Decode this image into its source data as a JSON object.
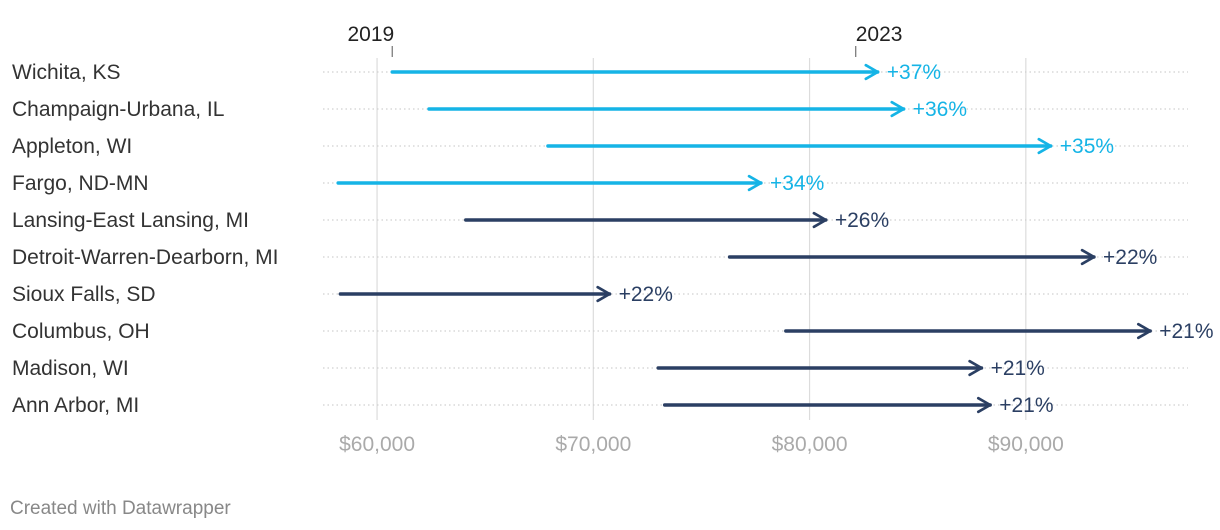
{
  "chart_data": {
    "type": "arrow",
    "title": "",
    "start_label": "2019",
    "end_label": "2023",
    "xlim": [
      57500,
      97500
    ],
    "x_ticks": [
      {
        "value": 60000,
        "label": "$60,000"
      },
      {
        "value": 70000,
        "label": "$70,000"
      },
      {
        "value": 80000,
        "label": "$80,000"
      },
      {
        "value": 90000,
        "label": "$90,000"
      }
    ],
    "rows": [
      {
        "name": "Wichita, KS",
        "start": 60700,
        "end": 83200,
        "change": "+37%",
        "group": "top"
      },
      {
        "name": "Champaign-Urbana, IL",
        "start": 62400,
        "end": 84400,
        "change": "+36%",
        "group": "top"
      },
      {
        "name": "Appleton, WI",
        "start": 67900,
        "end": 91200,
        "change": "+35%",
        "group": "top"
      },
      {
        "name": "Fargo, ND-MN",
        "start": 58200,
        "end": 77800,
        "change": "+34%",
        "group": "top"
      },
      {
        "name": "Lansing-East Lansing, MI",
        "start": 64100,
        "end": 80800,
        "change": "+26%",
        "group": "other"
      },
      {
        "name": "Detroit-Warren-Dearborn, MI",
        "start": 76300,
        "end": 93200,
        "change": "+22%",
        "group": "other"
      },
      {
        "name": "Sioux Falls, SD",
        "start": 58300,
        "end": 70800,
        "change": "+22%",
        "group": "other"
      },
      {
        "name": "Columbus, OH",
        "start": 78900,
        "end": 95800,
        "change": "+21%",
        "group": "other"
      },
      {
        "name": "Madison, WI",
        "start": 73000,
        "end": 88000,
        "change": "+21%",
        "group": "other"
      },
      {
        "name": "Ann Arbor, MI",
        "start": 73300,
        "end": 88400,
        "change": "+21%",
        "group": "other"
      }
    ],
    "colors": {
      "top": "#15b4e6",
      "other": "#2b3f63",
      "grid": "#dcdcdc",
      "row_line": "#d0d0d0"
    }
  },
  "footer": {
    "credit": "Created with Datawrapper"
  }
}
